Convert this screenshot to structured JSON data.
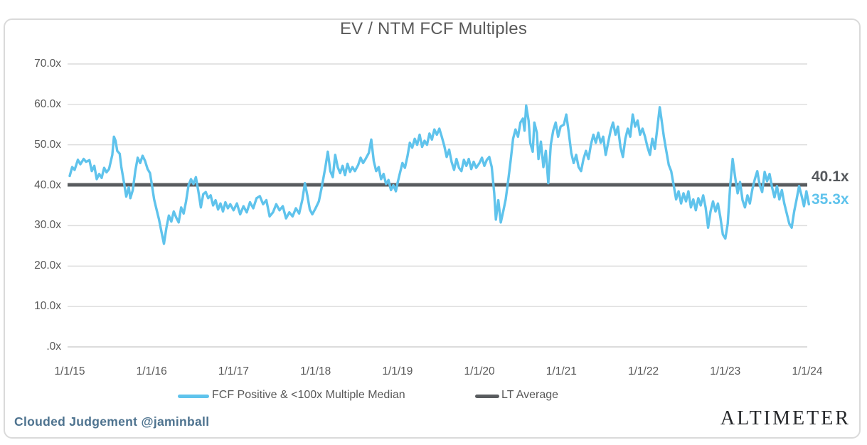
{
  "annotations": {
    "lt_average_label": "40.1x",
    "latest_value_label": "35.3x"
  },
  "footer": {
    "credit": "Clouded Judgement @jaminball",
    "brand": "ALTIMETER"
  },
  "colors": {
    "series": "#5fc3ec",
    "lt_average": "#595c5f",
    "grid": "#dcdcdc",
    "axis_text": "#595959",
    "title_text": "#595959",
    "credit_text": "#4e738f",
    "brand_text": "#25272a",
    "border": "#dadada"
  },
  "chart_data": {
    "type": "line",
    "title": "EV / NTM FCF Multiples",
    "x_tick_labels": [
      "1/1/15",
      "1/1/16",
      "1/1/17",
      "1/1/18",
      "1/1/19",
      "1/1/20",
      "1/1/21",
      "1/1/22",
      "1/1/23",
      "1/1/24"
    ],
    "y_tick_labels": [
      "70.0x",
      "60.0x",
      "50.0x",
      "40.0x",
      "30.0x",
      "20.0x",
      "10.0x",
      ".0x"
    ],
    "y_tick_values": [
      70,
      60,
      50,
      40,
      30,
      20,
      10,
      0
    ],
    "ylim": [
      0,
      70
    ],
    "xlim_years_after_first_tick": [
      0,
      9.05
    ],
    "grid": "horizontal",
    "legend_position": "bottom",
    "lt_average": 40.1,
    "latest": 35.3,
    "series": [
      {
        "name": "FCF Positive & <100x Multiple Median",
        "color": "#5fc3ec",
        "x_unit": "years after 1/1/15",
        "points": [
          [
            0.0,
            42.3
          ],
          [
            0.03,
            44.5
          ],
          [
            0.06,
            43.8
          ],
          [
            0.1,
            46.3
          ],
          [
            0.13,
            45.2
          ],
          [
            0.17,
            46.5
          ],
          [
            0.2,
            45.8
          ],
          [
            0.24,
            46.2
          ],
          [
            0.27,
            43.5
          ],
          [
            0.3,
            44.8
          ],
          [
            0.33,
            41.5
          ],
          [
            0.36,
            42.8
          ],
          [
            0.39,
            41.8
          ],
          [
            0.42,
            44.3
          ],
          [
            0.45,
            43.2
          ],
          [
            0.48,
            44.0
          ],
          [
            0.52,
            47.5
          ],
          [
            0.54,
            52.0
          ],
          [
            0.56,
            51.0
          ],
          [
            0.58,
            48.5
          ],
          [
            0.61,
            47.8
          ],
          [
            0.63,
            44.5
          ],
          [
            0.66,
            41.0
          ],
          [
            0.69,
            37.2
          ],
          [
            0.72,
            39.5
          ],
          [
            0.74,
            36.8
          ],
          [
            0.77,
            38.8
          ],
          [
            0.8,
            43.5
          ],
          [
            0.83,
            46.8
          ],
          [
            0.86,
            45.5
          ],
          [
            0.89,
            47.3
          ],
          [
            0.92,
            46.0
          ],
          [
            0.95,
            44.0
          ],
          [
            0.98,
            43.0
          ],
          [
            1.0,
            40.5
          ],
          [
            1.03,
            36.5
          ],
          [
            1.06,
            34.0
          ],
          [
            1.09,
            31.5
          ],
          [
            1.12,
            28.5
          ],
          [
            1.15,
            25.5
          ],
          [
            1.18,
            29.5
          ],
          [
            1.21,
            32.5
          ],
          [
            1.24,
            31.0
          ],
          [
            1.27,
            33.5
          ],
          [
            1.3,
            32.0
          ],
          [
            1.33,
            30.8
          ],
          [
            1.36,
            34.5
          ],
          [
            1.39,
            33.0
          ],
          [
            1.42,
            36.0
          ],
          [
            1.45,
            40.0
          ],
          [
            1.48,
            41.5
          ],
          [
            1.51,
            40.3
          ],
          [
            1.54,
            42.0
          ],
          [
            1.57,
            38.5
          ],
          [
            1.6,
            34.5
          ],
          [
            1.63,
            37.8
          ],
          [
            1.66,
            38.3
          ],
          [
            1.69,
            36.8
          ],
          [
            1.72,
            37.5
          ],
          [
            1.75,
            35.0
          ],
          [
            1.78,
            36.3
          ],
          [
            1.81,
            34.0
          ],
          [
            1.84,
            35.5
          ],
          [
            1.87,
            33.5
          ],
          [
            1.9,
            35.8
          ],
          [
            1.93,
            34.3
          ],
          [
            1.96,
            35.3
          ],
          [
            2.0,
            33.8
          ],
          [
            2.04,
            35.5
          ],
          [
            2.08,
            32.8
          ],
          [
            2.12,
            34.8
          ],
          [
            2.16,
            33.3
          ],
          [
            2.2,
            35.8
          ],
          [
            2.24,
            34.3
          ],
          [
            2.28,
            36.8
          ],
          [
            2.32,
            37.3
          ],
          [
            2.36,
            35.3
          ],
          [
            2.4,
            36.3
          ],
          [
            2.44,
            32.3
          ],
          [
            2.48,
            33.3
          ],
          [
            2.52,
            35.3
          ],
          [
            2.56,
            33.8
          ],
          [
            2.6,
            34.8
          ],
          [
            2.64,
            31.8
          ],
          [
            2.68,
            33.3
          ],
          [
            2.72,
            32.3
          ],
          [
            2.76,
            34.3
          ],
          [
            2.8,
            33.0
          ],
          [
            2.84,
            36.5
          ],
          [
            2.87,
            40.5
          ],
          [
            2.9,
            37.5
          ],
          [
            2.93,
            34.0
          ],
          [
            2.96,
            32.8
          ],
          [
            3.0,
            34.3
          ],
          [
            3.04,
            36.0
          ],
          [
            3.08,
            40.0
          ],
          [
            3.12,
            44.5
          ],
          [
            3.15,
            48.3
          ],
          [
            3.18,
            43.5
          ],
          [
            3.21,
            42.0
          ],
          [
            3.24,
            47.5
          ],
          [
            3.27,
            44.5
          ],
          [
            3.3,
            43.0
          ],
          [
            3.33,
            44.8
          ],
          [
            3.36,
            42.5
          ],
          [
            3.39,
            45.3
          ],
          [
            3.42,
            43.3
          ],
          [
            3.45,
            44.5
          ],
          [
            3.48,
            43.5
          ],
          [
            3.52,
            45.0
          ],
          [
            3.55,
            46.8
          ],
          [
            3.58,
            45.5
          ],
          [
            3.61,
            46.5
          ],
          [
            3.65,
            48.0
          ],
          [
            3.68,
            51.3
          ],
          [
            3.71,
            46.0
          ],
          [
            3.74,
            43.5
          ],
          [
            3.77,
            44.5
          ],
          [
            3.8,
            41.5
          ],
          [
            3.83,
            42.8
          ],
          [
            3.86,
            40.3
          ],
          [
            3.89,
            41.3
          ],
          [
            3.92,
            38.8
          ],
          [
            3.95,
            40.0
          ],
          [
            3.98,
            38.5
          ],
          [
            4.0,
            40.5
          ],
          [
            4.03,
            43.0
          ],
          [
            4.06,
            45.5
          ],
          [
            4.09,
            44.3
          ],
          [
            4.12,
            47.0
          ],
          [
            4.15,
            50.5
          ],
          [
            4.18,
            49.3
          ],
          [
            4.21,
            51.5
          ],
          [
            4.24,
            50.0
          ],
          [
            4.27,
            52.5
          ],
          [
            4.3,
            49.5
          ],
          [
            4.33,
            51.0
          ],
          [
            4.36,
            50.0
          ],
          [
            4.39,
            52.8
          ],
          [
            4.42,
            51.3
          ],
          [
            4.45,
            53.8
          ],
          [
            4.48,
            52.5
          ],
          [
            4.51,
            54.0
          ],
          [
            4.54,
            52.0
          ],
          [
            4.57,
            49.8
          ],
          [
            4.6,
            47.0
          ],
          [
            4.63,
            48.8
          ],
          [
            4.66,
            45.8
          ],
          [
            4.69,
            43.8
          ],
          [
            4.72,
            46.5
          ],
          [
            4.75,
            44.3
          ],
          [
            4.78,
            43.5
          ],
          [
            4.81,
            46.3
          ],
          [
            4.84,
            44.8
          ],
          [
            4.87,
            46.5
          ],
          [
            4.9,
            44.0
          ],
          [
            4.93,
            45.8
          ],
          [
            4.96,
            44.3
          ],
          [
            5.0,
            45.5
          ],
          [
            5.03,
            46.8
          ],
          [
            5.06,
            44.8
          ],
          [
            5.09,
            46.3
          ],
          [
            5.12,
            47.0
          ],
          [
            5.15,
            44.5
          ],
          [
            5.18,
            38.0
          ],
          [
            5.2,
            31.5
          ],
          [
            5.23,
            36.3
          ],
          [
            5.26,
            30.8
          ],
          [
            5.29,
            33.5
          ],
          [
            5.32,
            36.5
          ],
          [
            5.35,
            41.0
          ],
          [
            5.38,
            46.0
          ],
          [
            5.41,
            51.5
          ],
          [
            5.44,
            53.8
          ],
          [
            5.47,
            52.0
          ],
          [
            5.5,
            55.5
          ],
          [
            5.53,
            56.5
          ],
          [
            5.55,
            53.5
          ],
          [
            5.57,
            59.7
          ],
          [
            5.6,
            56.0
          ],
          [
            5.62,
            50.5
          ],
          [
            5.65,
            48.3
          ],
          [
            5.67,
            55.5
          ],
          [
            5.7,
            53.0
          ],
          [
            5.72,
            46.5
          ],
          [
            5.75,
            50.8
          ],
          [
            5.78,
            44.5
          ],
          [
            5.81,
            48.5
          ],
          [
            5.84,
            40.5
          ],
          [
            5.87,
            50.0
          ],
          [
            5.9,
            53.5
          ],
          [
            5.93,
            55.5
          ],
          [
            5.96,
            52.0
          ],
          [
            5.99,
            54.5
          ],
          [
            6.03,
            55.0
          ],
          [
            6.06,
            57.5
          ],
          [
            6.09,
            53.0
          ],
          [
            6.12,
            48.0
          ],
          [
            6.15,
            45.5
          ],
          [
            6.18,
            47.5
          ],
          [
            6.21,
            44.5
          ],
          [
            6.24,
            43.5
          ],
          [
            6.27,
            46.5
          ],
          [
            6.3,
            48.5
          ],
          [
            6.33,
            46.5
          ],
          [
            6.36,
            50.0
          ],
          [
            6.39,
            52.5
          ],
          [
            6.42,
            50.5
          ],
          [
            6.45,
            53.0
          ],
          [
            6.48,
            50.5
          ],
          [
            6.51,
            52.0
          ],
          [
            6.54,
            47.5
          ],
          [
            6.57,
            50.5
          ],
          [
            6.6,
            53.5
          ],
          [
            6.63,
            55.5
          ],
          [
            6.66,
            52.5
          ],
          [
            6.69,
            54.5
          ],
          [
            6.72,
            49.5
          ],
          [
            6.75,
            47.0
          ],
          [
            6.78,
            51.5
          ],
          [
            6.81,
            54.0
          ],
          [
            6.84,
            52.0
          ],
          [
            6.87,
            57.5
          ],
          [
            6.9,
            54.5
          ],
          [
            6.93,
            56.0
          ],
          [
            6.96,
            52.5
          ],
          [
            6.99,
            54.0
          ],
          [
            7.02,
            52.0
          ],
          [
            7.05,
            49.5
          ],
          [
            7.08,
            47.5
          ],
          [
            7.11,
            51.5
          ],
          [
            7.14,
            49.0
          ],
          [
            7.17,
            54.0
          ],
          [
            7.2,
            59.3
          ],
          [
            7.22,
            56.5
          ],
          [
            7.25,
            52.0
          ],
          [
            7.28,
            48.5
          ],
          [
            7.31,
            45.0
          ],
          [
            7.34,
            43.5
          ],
          [
            7.37,
            40.0
          ],
          [
            7.4,
            36.5
          ],
          [
            7.43,
            38.5
          ],
          [
            7.46,
            35.5
          ],
          [
            7.49,
            38.0
          ],
          [
            7.52,
            36.0
          ],
          [
            7.55,
            38.5
          ],
          [
            7.58,
            34.5
          ],
          [
            7.61,
            36.5
          ],
          [
            7.64,
            33.8
          ],
          [
            7.67,
            36.8
          ],
          [
            7.7,
            35.0
          ],
          [
            7.73,
            37.5
          ],
          [
            7.76,
            34.5
          ],
          [
            7.79,
            29.5
          ],
          [
            7.82,
            33.5
          ],
          [
            7.85,
            36.0
          ],
          [
            7.88,
            33.5
          ],
          [
            7.91,
            35.5
          ],
          [
            7.94,
            32.0
          ],
          [
            7.97,
            27.8
          ],
          [
            8.0,
            26.8
          ],
          [
            8.03,
            30.5
          ],
          [
            8.06,
            40.0
          ],
          [
            8.09,
            46.5
          ],
          [
            8.12,
            42.0
          ],
          [
            8.15,
            38.0
          ],
          [
            8.18,
            40.8
          ],
          [
            8.21,
            36.3
          ],
          [
            8.24,
            34.5
          ],
          [
            8.27,
            37.5
          ],
          [
            8.3,
            35.5
          ],
          [
            8.33,
            39.0
          ],
          [
            8.36,
            41.5
          ],
          [
            8.39,
            43.5
          ],
          [
            8.42,
            40.0
          ],
          [
            8.45,
            38.3
          ],
          [
            8.48,
            43.3
          ],
          [
            8.51,
            41.0
          ],
          [
            8.54,
            42.8
          ],
          [
            8.57,
            39.5
          ],
          [
            8.6,
            37.0
          ],
          [
            8.63,
            39.8
          ],
          [
            8.66,
            36.5
          ],
          [
            8.69,
            38.8
          ],
          [
            8.72,
            35.5
          ],
          [
            8.75,
            33.0
          ],
          [
            8.78,
            30.5
          ],
          [
            8.81,
            29.5
          ],
          [
            8.84,
            33.5
          ],
          [
            8.87,
            36.5
          ],
          [
            8.9,
            39.8
          ],
          [
            8.93,
            37.5
          ],
          [
            8.96,
            34.8
          ],
          [
            8.99,
            38.5
          ],
          [
            9.02,
            35.3
          ]
        ]
      },
      {
        "name": "LT Average",
        "color": "#595c5f",
        "line_type": "horizontal",
        "value": 40.1
      }
    ]
  }
}
